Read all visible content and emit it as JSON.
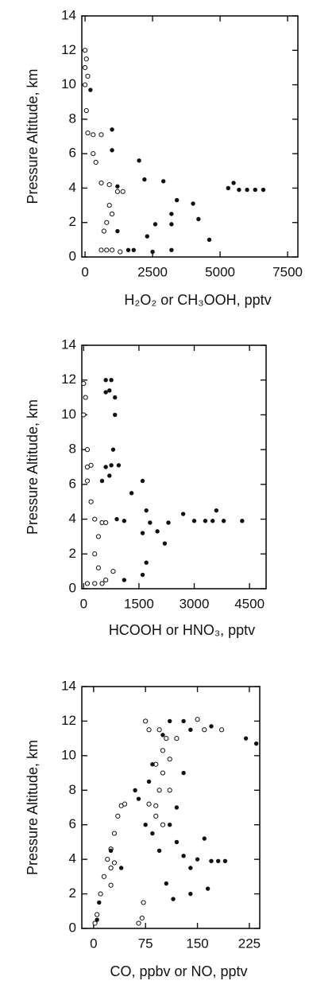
{
  "chart_data": [
    {
      "type": "scatter",
      "x_label": "H₂O₂ or CH₃OOH, pptv",
      "y_label": "Pressure Altitude, km",
      "xlim": [
        -120,
        7880
      ],
      "ylim": [
        0,
        14
      ],
      "xticks": [
        0,
        2500,
        5000,
        7500
      ],
      "yticks": [
        0,
        2,
        4,
        6,
        8,
        10,
        12,
        14
      ],
      "series": [
        {
          "marker": "open",
          "color": "#111111",
          "x": [
            0,
            50,
            0,
            100,
            0,
            50,
            100,
            300,
            600,
            300,
            400,
            600,
            900,
            1200,
            1400,
            900,
            1000,
            800,
            700,
            600,
            800,
            1000,
            1300
          ],
          "y": [
            12,
            11.5,
            11,
            10.5,
            10,
            8.5,
            7.2,
            7.1,
            7.1,
            6,
            5.5,
            4.3,
            4.2,
            3.8,
            3.8,
            3,
            2.5,
            2,
            1.5,
            0.4,
            0.4,
            0.4,
            0.3
          ]
        },
        {
          "marker": "filled",
          "color": "#111111",
          "x": [
            200,
            1000,
            1000,
            2000,
            1200,
            2200,
            2900,
            3400,
            4000,
            4200,
            4600,
            3200,
            3200,
            2600,
            2300,
            1800,
            2500,
            3200,
            5300,
            5500,
            5700,
            6000,
            6300,
            6600,
            1200,
            1600
          ],
          "y": [
            9.7,
            7.4,
            6.2,
            5.6,
            4.1,
            4.5,
            4.4,
            3.3,
            3.1,
            2.2,
            1,
            2.5,
            1.9,
            1.9,
            1.2,
            0.4,
            0.3,
            0.4,
            4,
            4.3,
            3.9,
            3.9,
            3.9,
            3.9,
            1.5,
            0.4
          ]
        }
      ]
    },
    {
      "type": "scatter",
      "x_label": "HCOOH or HNO₃, pptv",
      "y_label": "Pressure Altitude, km",
      "xlim": [
        -50,
        4950
      ],
      "ylim": [
        0,
        14
      ],
      "xticks": [
        0,
        1500,
        3000,
        4500
      ],
      "yticks": [
        0,
        2,
        4,
        6,
        8,
        10,
        12,
        14
      ],
      "series": [
        {
          "marker": "open",
          "color": "#111111",
          "x": [
            0,
            50,
            0,
            100,
            100,
            200,
            100,
            200,
            300,
            500,
            600,
            400,
            300,
            400,
            100,
            300,
            500,
            800,
            600
          ],
          "y": [
            11.8,
            11,
            10,
            8,
            7,
            7.1,
            6.2,
            5,
            4,
            3.8,
            3.8,
            3,
            2,
            1.2,
            0.3,
            0.3,
            0.3,
            1,
            0.5
          ]
        },
        {
          "marker": "filled",
          "color": "#111111",
          "x": [
            600,
            750,
            600,
            700,
            850,
            850,
            800,
            600,
            750,
            950,
            700,
            500,
            1300,
            1600,
            1700,
            1600,
            1800,
            2000,
            2300,
            2200,
            1700,
            1600,
            1100,
            2700,
            3000,
            3300,
            3500,
            3600,
            3800,
            4300,
            1100,
            900
          ],
          "y": [
            12,
            12,
            11.3,
            11.4,
            11,
            10,
            8,
            7,
            7.1,
            7.1,
            6.5,
            6.2,
            5.5,
            6.2,
            4.5,
            3.2,
            3.8,
            3.3,
            3.8,
            2.6,
            1.5,
            0.8,
            3.9,
            4.3,
            3.9,
            3.9,
            3.9,
            4.5,
            3.9,
            3.9,
            0.5,
            4
          ]
        }
      ]
    },
    {
      "type": "scatter",
      "x_label": "CO, ppbv or NO, pptv",
      "y_label": "Pressure Altitude, km",
      "xlim": [
        -17,
        240
      ],
      "ylim": [
        0,
        14
      ],
      "xticks": [
        0,
        75,
        150,
        225
      ],
      "yticks": [
        0,
        2,
        4,
        6,
        8,
        10,
        12,
        14
      ],
      "series": [
        {
          "marker": "open",
          "color": "#111111",
          "x": [
            2,
            5,
            10,
            15,
            20,
            25,
            30,
            35,
            40,
            45,
            25,
            30,
            25,
            65,
            70,
            72,
            75,
            80,
            95,
            100,
            105,
            110,
            120,
            150,
            160,
            185,
            80,
            90,
            95,
            90,
            100,
            110,
            100,
            90
          ],
          "y": [
            0.3,
            0.8,
            2,
            3,
            4,
            4.6,
            5.5,
            6.5,
            7.1,
            7.2,
            3.5,
            3.8,
            2.5,
            0.3,
            0.6,
            1.5,
            12,
            11.5,
            11.5,
            10.3,
            11,
            9.8,
            11,
            12.1,
            11.5,
            11.5,
            7.2,
            7.1,
            8,
            6.5,
            6,
            8,
            9,
            9.5
          ]
        },
        {
          "marker": "filled",
          "color": "#111111",
          "x": [
            5,
            8,
            25,
            40,
            60,
            80,
            85,
            100,
            110,
            130,
            140,
            170,
            220,
            235,
            130,
            120,
            110,
            120,
            130,
            140,
            150,
            160,
            170,
            180,
            190,
            165,
            140,
            115,
            105,
            95,
            85,
            75,
            65
          ],
          "y": [
            0.5,
            1.5,
            4.5,
            3.5,
            8,
            8.5,
            9.5,
            11.2,
            12,
            12,
            11.5,
            11.7,
            11,
            10.7,
            9,
            7,
            6,
            5,
            4.2,
            3.5,
            4,
            5.2,
            3.9,
            3.9,
            3.9,
            2.3,
            2,
            1.7,
            2.6,
            4.5,
            5.5,
            6,
            7.5
          ]
        }
      ]
    }
  ]
}
